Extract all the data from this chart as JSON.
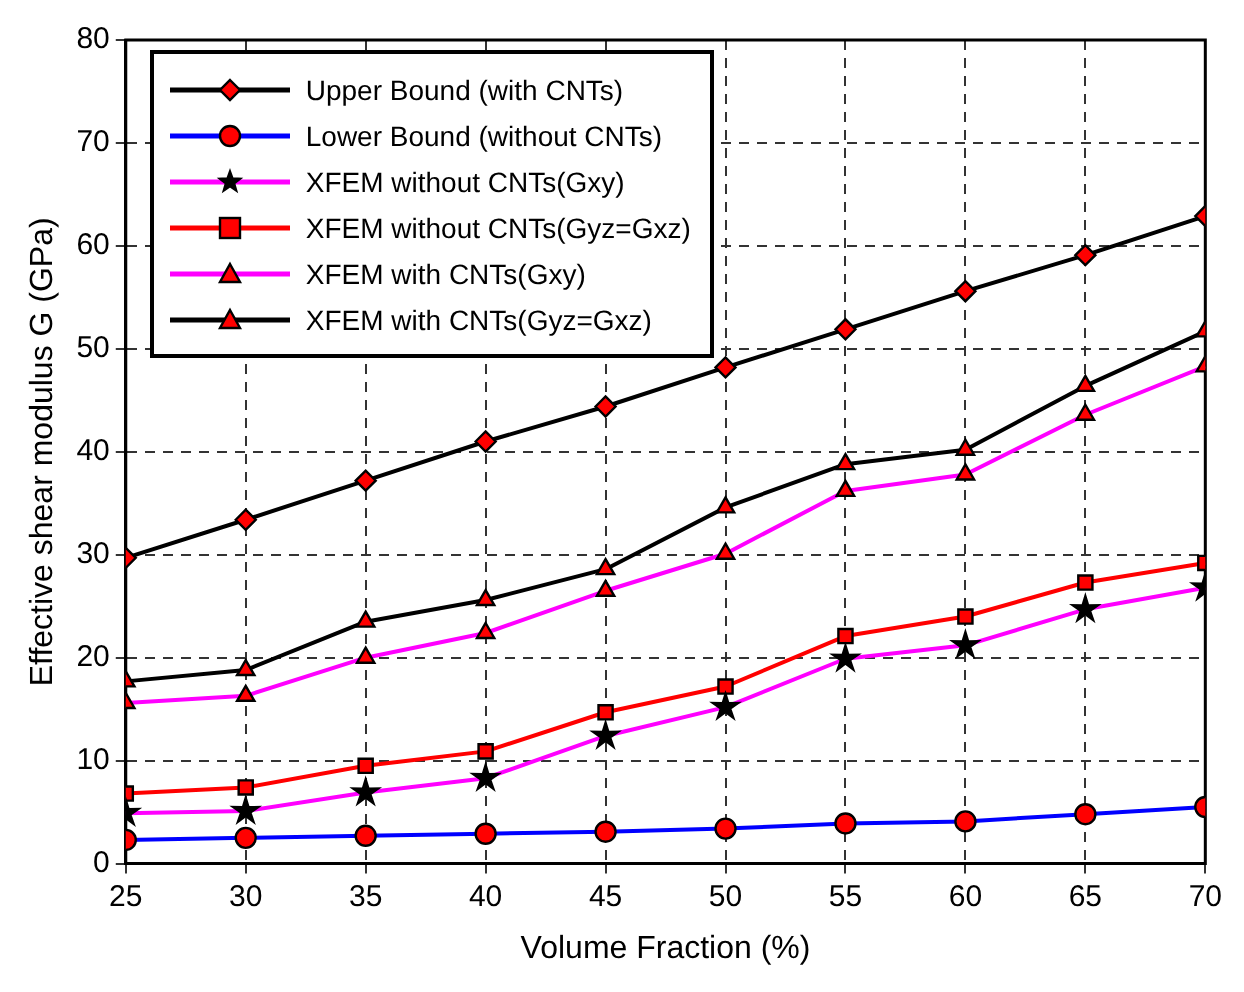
{
  "chart_data": {
    "type": "line",
    "xlabel": "Volume Fraction (%)",
    "ylabel": "Effective shear modulus G (GPa)",
    "x": [
      25,
      30,
      35,
      40,
      45,
      50,
      55,
      60,
      65,
      70
    ],
    "xlim": [
      25,
      70
    ],
    "xticks": [
      25,
      30,
      35,
      40,
      45,
      50,
      55,
      60,
      65,
      70
    ],
    "ylim": [
      0,
      80
    ],
    "yticks": [
      0,
      10,
      20,
      30,
      40,
      50,
      60,
      70,
      80
    ],
    "grid": true,
    "line_style": "solid",
    "legend": "top left",
    "series": [
      {
        "name": "Upper Bound (with CNTs)",
        "color": "#000000",
        "marker": "diamond",
        "values": [
          29.7,
          33.4,
          37.2,
          41.0,
          44.4,
          48.2,
          51.9,
          55.6,
          59.1,
          62.9
        ]
      },
      {
        "name": "Lower Bound (without CNTs)",
        "color": "#0000ff",
        "marker": "circle",
        "values": [
          2.3,
          2.5,
          2.7,
          2.9,
          3.1,
          3.4,
          3.9,
          4.1,
          4.8,
          5.5
        ]
      },
      {
        "name": "XFEM without CNTs(Gxy)",
        "color": "#ff00ff",
        "marker": "star",
        "values": [
          4.9,
          5.1,
          6.9,
          8.3,
          12.4,
          15.2,
          19.9,
          21.2,
          24.7,
          26.8
        ]
      },
      {
        "name": "XFEM without CNTs(Gyz=Gxz)",
        "color": "#ff0000",
        "marker": "square",
        "values": [
          6.8,
          7.4,
          9.5,
          10.9,
          14.7,
          17.2,
          22.1,
          24.0,
          27.3,
          29.2
        ]
      },
      {
        "name": "XFEM with CNTs(Gxy)",
        "color": "#ff00ff",
        "marker": "triangle",
        "values": [
          15.6,
          16.3,
          20.0,
          22.4,
          26.5,
          30.1,
          36.2,
          37.8,
          43.6,
          48.3
        ]
      },
      {
        "name": "XFEM with CNTs(Gyz=Gxz)",
        "color": "#000000",
        "marker": "triangle",
        "values": [
          17.7,
          18.8,
          23.5,
          25.6,
          28.6,
          34.6,
          38.8,
          40.2,
          46.4,
          51.7
        ]
      }
    ]
  }
}
